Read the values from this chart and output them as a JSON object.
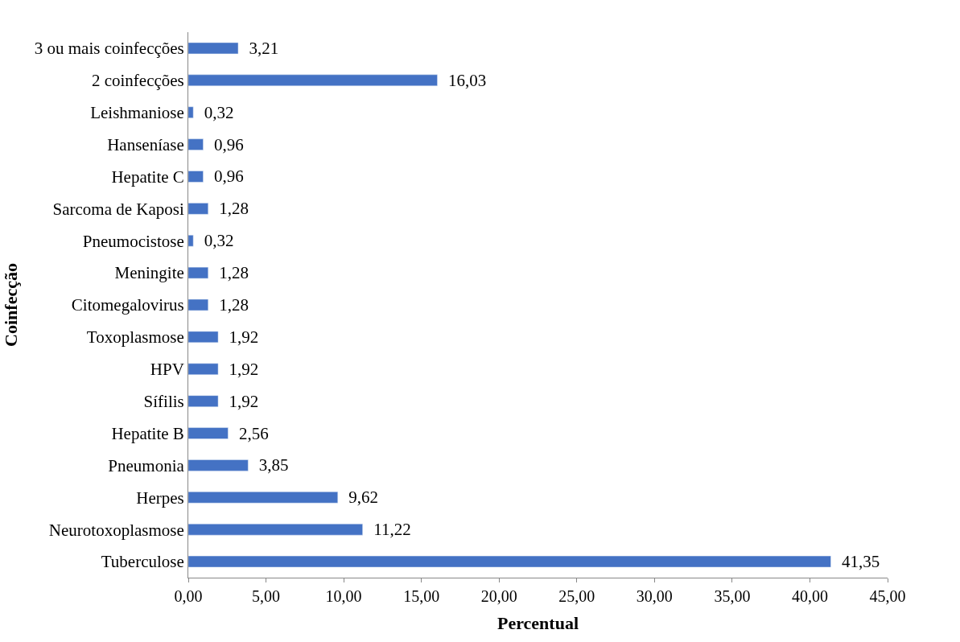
{
  "chart_data": {
    "type": "bar",
    "orientation": "horizontal",
    "xlabel": "Percentual",
    "ylabel": "Coinfecção",
    "categories": [
      "3 ou mais coinfecções",
      "2 coinfecções",
      "Leishmaniose",
      "Hanseníase",
      "Hepatite C",
      "Sarcoma de Kaposi",
      "Pneumocistose",
      "Meningite",
      "Citomegalovirus",
      "Toxoplasmose",
      "HPV",
      "Sífilis",
      "Hepatite B",
      "Pneumonia",
      "Herpes",
      "Neurotoxoplasmose",
      "Tuberculose"
    ],
    "values": [
      3.21,
      16.03,
      0.32,
      0.96,
      0.96,
      1.28,
      0.32,
      1.28,
      1.28,
      1.92,
      1.92,
      1.92,
      2.56,
      3.85,
      9.62,
      11.22,
      41.35
    ],
    "value_labels": [
      "3,21",
      "16,03",
      "0,32",
      "0,96",
      "0,96",
      "1,28",
      "0,32",
      "1,28",
      "1,28",
      "1,92",
      "1,92",
      "1,92",
      "2,56",
      "3,85",
      "9,62",
      "11,22",
      "41,35"
    ],
    "color": "#4472c4",
    "xlim": [
      0,
      45
    ],
    "xticks": [
      {
        "value": 0,
        "label": "0,00"
      },
      {
        "value": 5,
        "label": "5,00"
      },
      {
        "value": 10,
        "label": "10,00"
      },
      {
        "value": 15,
        "label": "15,00"
      },
      {
        "value": 20,
        "label": "20,00"
      },
      {
        "value": 25,
        "label": "25,00"
      },
      {
        "value": 30,
        "label": "30,00"
      },
      {
        "value": 35,
        "label": "35,00"
      },
      {
        "value": 40,
        "label": "40,00"
      },
      {
        "value": 45,
        "label": "45,00"
      }
    ],
    "legend": false
  }
}
